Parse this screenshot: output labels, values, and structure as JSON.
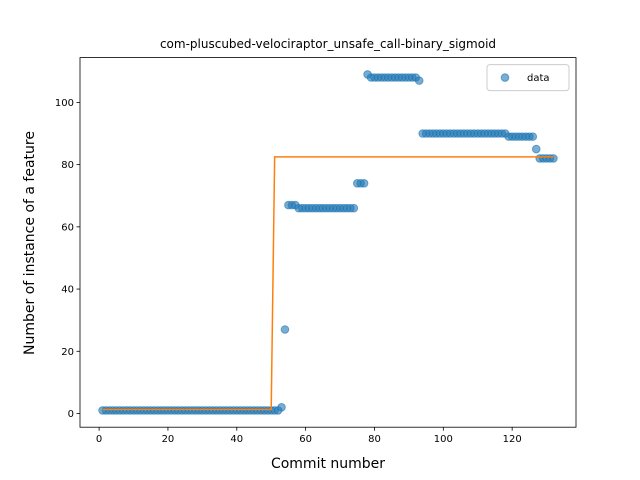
{
  "chart_data": {
    "type": "scatter",
    "title": "com-pluscubed-velociraptor_unsafe_call-binary_sigmoid",
    "xlabel": "Commit number",
    "ylabel": "Number of instance of a feature",
    "x": [
      1,
      2,
      3,
      4,
      5,
      6,
      7,
      8,
      9,
      10,
      11,
      12,
      13,
      14,
      15,
      16,
      17,
      18,
      19,
      20,
      21,
      22,
      23,
      24,
      25,
      26,
      27,
      28,
      29,
      30,
      31,
      32,
      33,
      34,
      35,
      36,
      37,
      38,
      39,
      40,
      41,
      42,
      43,
      44,
      45,
      46,
      47,
      48,
      49,
      50,
      51,
      52,
      53,
      54,
      55,
      56,
      57,
      58,
      59,
      60,
      61,
      62,
      63,
      64,
      65,
      66,
      67,
      68,
      69,
      70,
      71,
      72,
      73,
      74,
      75,
      76,
      77,
      78,
      79,
      80,
      81,
      82,
      83,
      84,
      85,
      86,
      87,
      88,
      89,
      90,
      91,
      92,
      93,
      94,
      95,
      96,
      97,
      98,
      99,
      100,
      101,
      102,
      103,
      104,
      105,
      106,
      107,
      108,
      109,
      110,
      111,
      112,
      113,
      114,
      115,
      116,
      117,
      118,
      119,
      120,
      121,
      122,
      123,
      124,
      125,
      126,
      127,
      128,
      129,
      130,
      131,
      132
    ],
    "series": [
      {
        "name": "data",
        "color": "#1f77b4",
        "mode": "markers",
        "values": [
          1,
          1,
          1,
          1,
          1,
          1,
          1,
          1,
          1,
          1,
          1,
          1,
          1,
          1,
          1,
          1,
          1,
          1,
          1,
          1,
          1,
          1,
          1,
          1,
          1,
          1,
          1,
          1,
          1,
          1,
          1,
          1,
          1,
          1,
          1,
          1,
          1,
          1,
          1,
          1,
          1,
          1,
          1,
          1,
          1,
          1,
          1,
          1,
          1,
          1,
          1,
          1,
          2,
          27,
          67,
          67,
          67,
          66,
          66,
          66,
          66,
          66,
          66,
          66,
          66,
          66,
          66,
          66,
          66,
          66,
          66,
          66,
          66,
          66,
          74,
          74,
          74,
          109,
          108,
          108,
          108,
          108,
          108,
          108,
          108,
          108,
          108,
          108,
          108,
          108,
          108,
          108,
          107,
          90,
          90,
          90,
          90,
          90,
          90,
          90,
          90,
          90,
          90,
          90,
          90,
          90,
          90,
          90,
          90,
          90,
          90,
          90,
          90,
          90,
          90,
          90,
          90,
          90,
          89,
          89,
          89,
          89,
          89,
          89,
          89,
          89,
          85,
          82,
          82,
          82,
          82,
          82
        ]
      },
      {
        "color": "#ff7f0e",
        "mode": "line",
        "values": [
          1.3,
          1.3,
          1.3,
          1.3,
          1.3,
          1.3,
          1.3,
          1.3,
          1.3,
          1.3,
          1.3,
          1.3,
          1.3,
          1.3,
          1.3,
          1.3,
          1.3,
          1.3,
          1.3,
          1.3,
          1.3,
          1.3,
          1.3,
          1.3,
          1.3,
          1.3,
          1.3,
          1.3,
          1.3,
          1.3,
          1.3,
          1.3,
          1.3,
          1.3,
          1.3,
          1.3,
          1.3,
          1.3,
          1.3,
          1.3,
          1.3,
          1.3,
          1.3,
          1.3,
          1.3,
          1.3,
          1.3,
          1.3,
          1.3,
          1.3,
          82.5,
          82.5,
          82.5,
          82.5,
          82.5,
          82.5,
          82.5,
          82.5,
          82.5,
          82.5,
          82.5,
          82.5,
          82.5,
          82.5,
          82.5,
          82.5,
          82.5,
          82.5,
          82.5,
          82.5,
          82.5,
          82.5,
          82.5,
          82.5,
          82.5,
          82.5,
          82.5,
          82.5,
          82.5,
          82.5,
          82.5,
          82.5,
          82.5,
          82.5,
          82.5,
          82.5,
          82.5,
          82.5,
          82.5,
          82.5,
          82.5,
          82.5,
          82.5,
          82.5,
          82.5,
          82.5,
          82.5,
          82.5,
          82.5,
          82.5,
          82.5,
          82.5,
          82.5,
          82.5,
          82.5,
          82.5,
          82.5,
          82.5,
          82.5,
          82.5,
          82.5,
          82.5,
          82.5,
          82.5,
          82.5,
          82.5,
          82.5,
          82.5,
          82.5,
          82.5,
          82.5,
          82.5,
          82.5,
          82.5,
          82.5,
          82.5,
          82.5,
          82.5,
          82.5,
          82.5,
          82.5,
          82.5
        ]
      }
    ],
    "xlim": [
      -5.55,
      138.55
    ],
    "xticks": [
      0,
      20,
      40,
      60,
      80,
      100,
      120
    ],
    "ylim": [
      -4.4,
      114.4
    ],
    "yticks": [
      0,
      20,
      40,
      60,
      80,
      100
    ],
    "legend": "upper right"
  }
}
